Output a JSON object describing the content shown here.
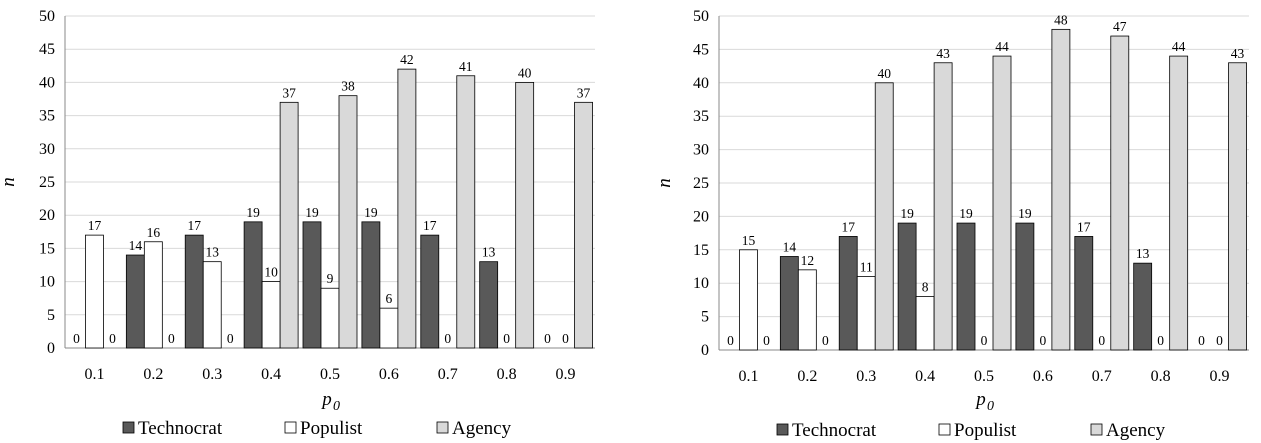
{
  "chart_data": [
    {
      "type": "bar",
      "categories": [
        "0.1",
        "0.2",
        "0.3",
        "0.4",
        "0.5",
        "0.6",
        "0.7",
        "0.8",
        "0.9"
      ],
      "series": [
        {
          "name": "Technocrat",
          "values": [
            0,
            14,
            17,
            19,
            19,
            19,
            17,
            13,
            0
          ],
          "color": "#595959"
        },
        {
          "name": "Populist",
          "values": [
            17,
            16,
            13,
            10,
            9,
            6,
            0,
            0,
            0
          ],
          "color": "#ffffff"
        },
        {
          "name": "Agency",
          "values": [
            0,
            0,
            0,
            37,
            38,
            42,
            41,
            40,
            37
          ],
          "color": "#d9d9d9"
        }
      ],
      "xlabel": "p",
      "xlabel_sub": "0",
      "ylabel": "n",
      "ylim": [
        0,
        50
      ],
      "yticks": [
        "0",
        "5",
        "10",
        "15",
        "20",
        "25",
        "30",
        "35",
        "40",
        "45",
        "50"
      ],
      "grid": true,
      "legend": "bottom"
    },
    {
      "type": "bar",
      "categories": [
        "0.1",
        "0.2",
        "0.3",
        "0.4",
        "0.5",
        "0.6",
        "0.7",
        "0.8",
        "0.9"
      ],
      "series": [
        {
          "name": "Technocrat",
          "values": [
            0,
            14,
            17,
            19,
            19,
            19,
            17,
            13,
            0
          ],
          "color": "#595959"
        },
        {
          "name": "Populist",
          "values": [
            15,
            12,
            11,
            8,
            0,
            0,
            0,
            0,
            0
          ],
          "color": "#ffffff"
        },
        {
          "name": "Agency",
          "values": [
            0,
            0,
            40,
            43,
            44,
            48,
            47,
            44,
            43
          ],
          "color": "#d9d9d9"
        }
      ],
      "xlabel": "p",
      "xlabel_sub": "0",
      "ylabel": "n",
      "ylim": [
        0,
        50
      ],
      "yticks": [
        "0",
        "5",
        "10",
        "15",
        "20",
        "25",
        "30",
        "35",
        "40",
        "45",
        "50"
      ],
      "grid": true,
      "legend": "bottom"
    }
  ]
}
